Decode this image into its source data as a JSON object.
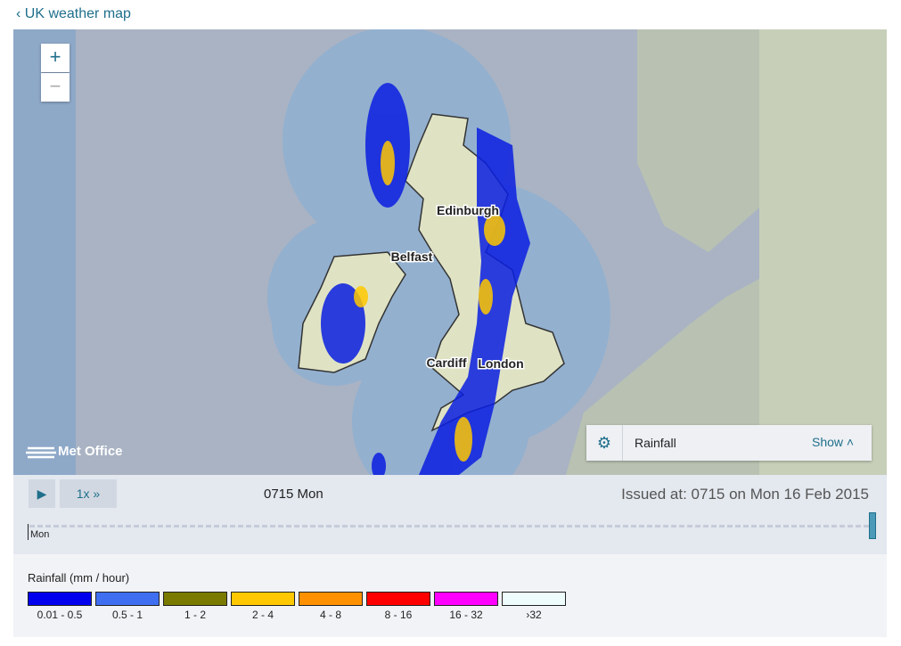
{
  "header": {
    "back_link": "UK weather map"
  },
  "map": {
    "zoom_in": "+",
    "zoom_out": "−",
    "places": [
      "Edinburgh",
      "Belfast",
      "Cardiff",
      "London"
    ],
    "logo": "Met Office",
    "layer_panel": {
      "layer": "Rainfall",
      "toggle": "Show"
    }
  },
  "controls": {
    "speed": "1x",
    "time": "0715 Mon",
    "issued": "Issued at: 0715 on Mon 16 Feb 2015",
    "timeline_day": "Mon"
  },
  "legend": {
    "title": "Rainfall (mm / hour)",
    "items": [
      {
        "label": "0.01 - 0.5",
        "color": "#0000ee"
      },
      {
        "label": "0.5 - 1",
        "color": "#3f6ff0"
      },
      {
        "label": "1 - 2",
        "color": "#7a7a00"
      },
      {
        "label": "2 - 4",
        "color": "#ffc800"
      },
      {
        "label": "4 - 8",
        "color": "#ff9100"
      },
      {
        "label": "8 - 16",
        "color": "#ff0000"
      },
      {
        "label": "16 - 32",
        "color": "#ff00ff"
      },
      {
        "label": "›32",
        "color": "#eefcfc"
      }
    ]
  }
}
